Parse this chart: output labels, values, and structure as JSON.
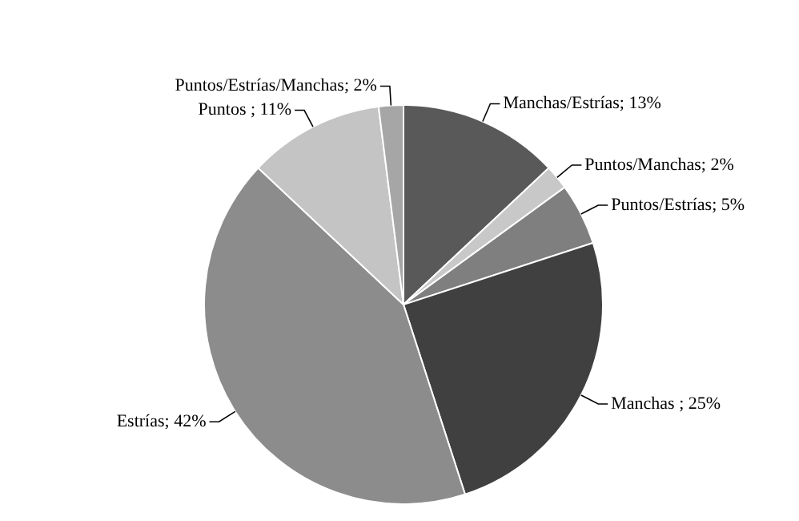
{
  "chart_data": {
    "type": "pie",
    "categories": [
      "Manchas/Estrías",
      "Puntos/Manchas",
      "Puntos/Estrías",
      "Manchas ",
      "Estrías",
      "Puntos ",
      "Puntos/Estrías/Manchas"
    ],
    "values": [
      13,
      2,
      5,
      25,
      42,
      11,
      2
    ],
    "value_labels": [
      "13%",
      "2%",
      "5%",
      "25%",
      "42%",
      "11%",
      "2%"
    ],
    "colors": [
      "#595959",
      "#c8c8c8",
      "#7f7f7f",
      "#404040",
      "#8c8c8c",
      "#c4c4c4",
      "#a6a6a6"
    ],
    "legend": false
  }
}
